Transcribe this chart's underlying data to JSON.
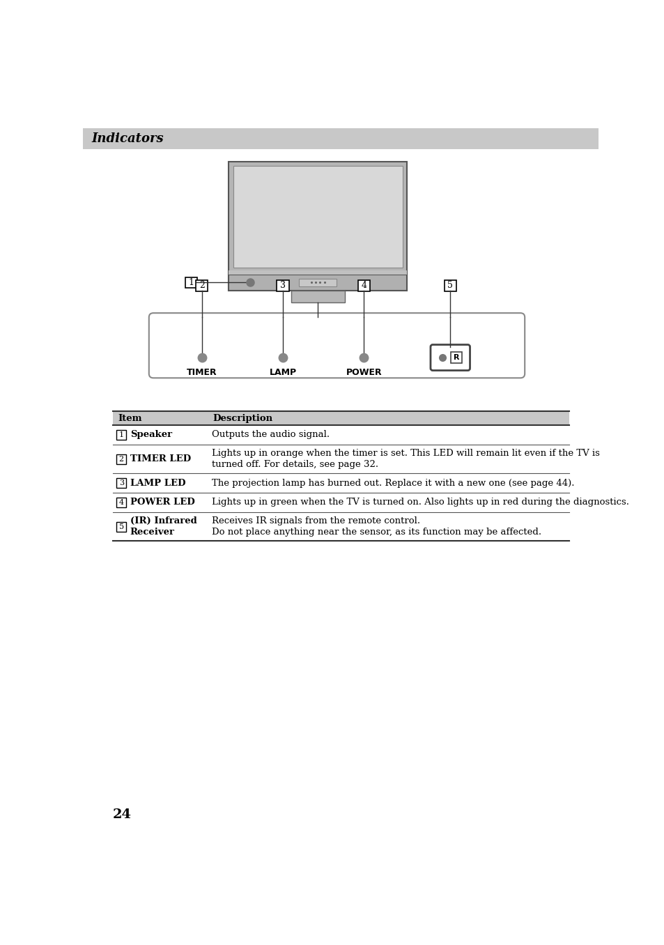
{
  "title": "Indicators",
  "title_bg": "#c8c8c8",
  "title_color": "#000000",
  "title_fontsize": 13,
  "page_number": "24",
  "table_rows": [
    {
      "num": "1",
      "item": "Speaker",
      "description": "Outputs the audio signal."
    },
    {
      "num": "2",
      "item": "TIMER LED",
      "description": "Lights up in orange when the timer is set. This LED will remain lit even if the TV is\nturned off. For details, see page 32."
    },
    {
      "num": "3",
      "item": "LAMP LED",
      "description": "The projection lamp has burned out. Replace it with a new one (see page 44)."
    },
    {
      "num": "4",
      "item": "POWER LED",
      "description": "Lights up in green when the TV is turned on. Also lights up in red during the diagnostics."
    },
    {
      "num": "5",
      "item": "(IR) Infrared\nReceiver",
      "description": "Receives IR signals from the remote control.\nDo not place anything near the sensor, as its function may be affected."
    }
  ],
  "bg_color": "#ffffff",
  "table_header_bg": "#c8c8c8",
  "tv_outer_color": "#aaaaaa",
  "tv_screen_color": "#d0d0d0",
  "tv_bezel_color": "#b8b8b8"
}
